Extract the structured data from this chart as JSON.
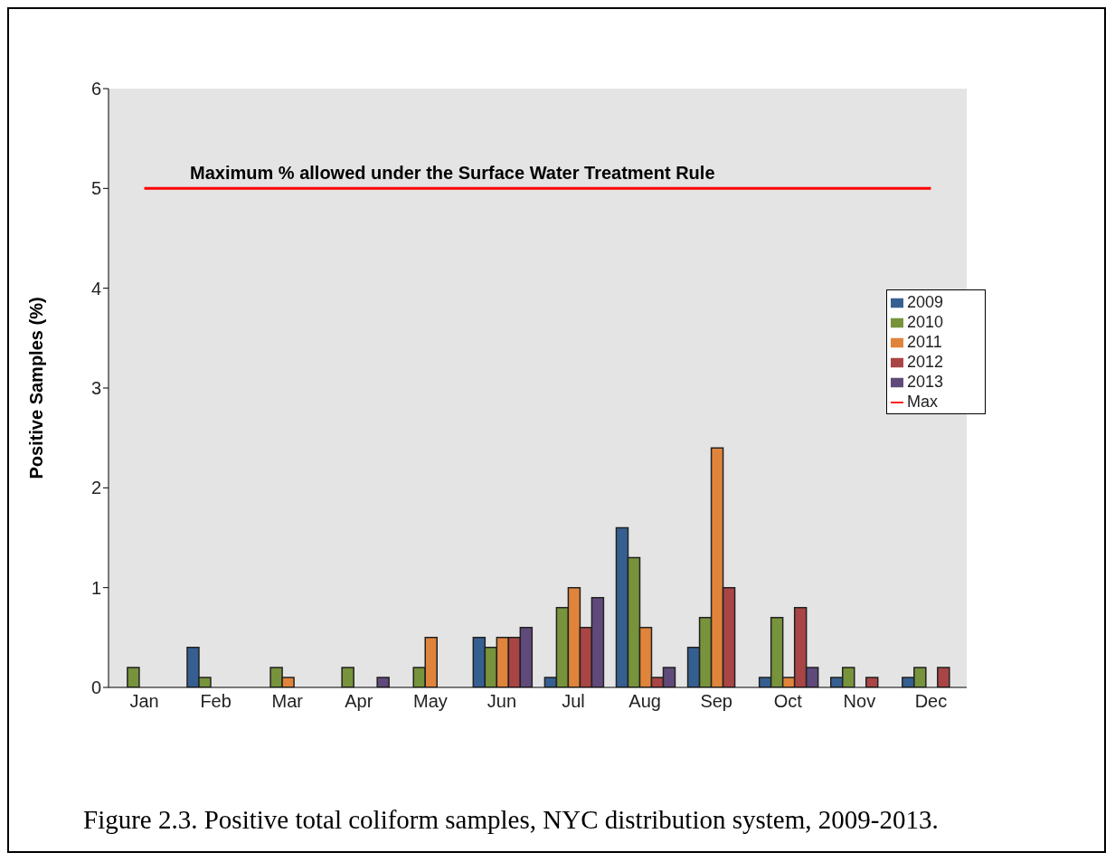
{
  "chart_data": {
    "type": "bar",
    "ylabel": "Positive Samples (%)",
    "categories": [
      "Jan",
      "Feb",
      "Mar",
      "Apr",
      "May",
      "Jun",
      "Jul",
      "Aug",
      "Sep",
      "Oct",
      "Nov",
      "Dec"
    ],
    "series": [
      {
        "name": "2009",
        "color": "#365f91",
        "values": [
          null,
          0.4,
          null,
          null,
          null,
          0.5,
          0.1,
          1.6,
          0.4,
          0.1,
          0.1,
          0.1
        ]
      },
      {
        "name": "2010",
        "color": "#77933c",
        "values": [
          0.2,
          0.1,
          0.2,
          0.2,
          0.2,
          0.4,
          0.8,
          1.3,
          0.7,
          0.7,
          0.2,
          0.2
        ]
      },
      {
        "name": "2011",
        "color": "#e0843c",
        "values": [
          null,
          null,
          0.1,
          null,
          0.5,
          0.5,
          1.0,
          0.6,
          2.4,
          0.1,
          null,
          null
        ]
      },
      {
        "name": "2012",
        "color": "#a94545",
        "values": [
          null,
          null,
          null,
          null,
          null,
          0.5,
          0.6,
          0.1,
          1.0,
          0.8,
          0.1,
          0.2
        ]
      },
      {
        "name": "2013",
        "color": "#604a7b",
        "values": [
          null,
          null,
          null,
          0.1,
          null,
          0.6,
          0.9,
          0.2,
          null,
          0.2,
          null,
          null
        ]
      },
      {
        "name": "Max",
        "type": "line",
        "color": "#ff0000",
        "values": [
          5,
          5,
          5,
          5,
          5,
          5,
          5,
          5,
          5,
          5,
          5,
          5
        ]
      }
    ],
    "ylim": [
      0,
      6
    ],
    "yticks": [
      0,
      1,
      2,
      3,
      4,
      5,
      6
    ],
    "grid": false,
    "legend": "right",
    "marker": "none",
    "annotations": [
      "Maximum % allowed under the Surface Water Treatment Rule",
      "Figure 2.3.  Positive total coliform samples, NYC distribution system, 2009-2013."
    ]
  }
}
